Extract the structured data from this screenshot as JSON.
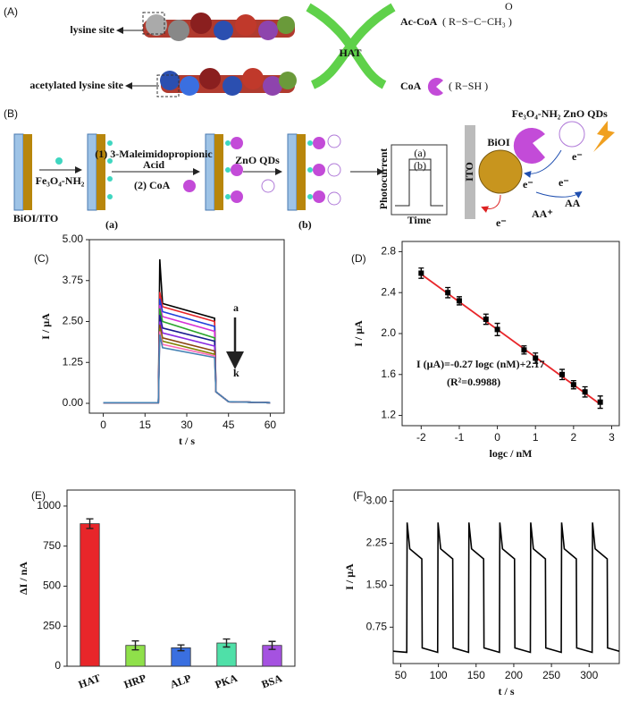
{
  "diagram": {
    "panel_a": {
      "label": "(A)",
      "lysine": "lysine site",
      "acetylated": "acetylated lysine site",
      "enzyme": "HAT",
      "accoa": "Ac-CoA",
      "accoa_formula": "( R−S−C−CH₃ )",
      "oxygen": "O",
      "coa": "CoA",
      "coa_formula": "( R−SH )"
    },
    "panel_b": {
      "label": "(B)",
      "electrode": "BiOI/ITO",
      "fe_step": "Fe₃O₄-NH₂",
      "step1": "(1) 3-Maleimidopropionic",
      "step1b": "Acid",
      "step2": "(2) CoA",
      "stage_a": "(a)",
      "zno_step": "ZnO QDs",
      "stage_b": "(b)",
      "pc_axis": "Photocurrent",
      "time_axis": "Time",
      "pc_a": "(a)",
      "pc_b": "(b)",
      "ito": "ITO",
      "bioi": "BiOI",
      "fe_label": "Fe₃O₄-NH₂",
      "zno_label": "ZnO QDs",
      "e1": "e⁻",
      "e2": "e⁻",
      "e3": "e⁻",
      "e4": "e⁻",
      "aa_plus": "AA⁺",
      "aa": "AA"
    }
  },
  "chart_data": [
    {
      "type": "line",
      "panel": "(C)",
      "x_label": "t / s",
      "y_label": "I / μA",
      "annotations": [
        "a",
        "k"
      ],
      "x": [
        0,
        19.8,
        20.3,
        21.3,
        40,
        40.5,
        45,
        60
      ],
      "series": [
        {
          "color": "#000000",
          "values": [
            0.02,
            0.02,
            4.4,
            3.05,
            2.6,
            0.35,
            0.05,
            0.02
          ]
        },
        {
          "color": "#e8262a",
          "values": [
            0.02,
            0.02,
            3.4,
            2.95,
            2.5,
            0.35,
            0.05,
            0.02
          ]
        },
        {
          "color": "#1f3fdc",
          "values": [
            0.02,
            0.02,
            3.2,
            2.8,
            2.35,
            0.35,
            0.05,
            0.02
          ]
        },
        {
          "color": "#d62fd6",
          "values": [
            0.02,
            0.02,
            3.0,
            2.65,
            2.2,
            0.35,
            0.05,
            0.02
          ]
        },
        {
          "color": "#2aa52a",
          "values": [
            0.02,
            0.02,
            2.9,
            2.5,
            2.0,
            0.35,
            0.05,
            0.02
          ]
        },
        {
          "color": "#1b1b8f",
          "values": [
            0.02,
            0.02,
            2.7,
            2.3,
            1.9,
            0.35,
            0.05,
            0.02
          ]
        },
        {
          "color": "#8a2be2",
          "values": [
            0.02,
            0.02,
            2.5,
            2.15,
            1.75,
            0.35,
            0.05,
            0.02
          ]
        },
        {
          "color": "#8b4513",
          "values": [
            0.02,
            0.02,
            2.4,
            2.0,
            1.6,
            0.35,
            0.05,
            0.02
          ]
        },
        {
          "color": "#808000",
          "values": [
            0.02,
            0.02,
            2.3,
            1.9,
            1.5,
            0.35,
            0.05,
            0.02
          ]
        },
        {
          "color": "#ff69b4",
          "values": [
            0.02,
            0.02,
            2.2,
            1.8,
            1.45,
            0.35,
            0.05,
            0.02
          ]
        },
        {
          "color": "#4682b4",
          "values": [
            0.02,
            0.02,
            2.1,
            1.7,
            1.4,
            0.35,
            0.05,
            0.02
          ]
        }
      ],
      "xlim": [
        -5,
        65
      ],
      "xticks": [
        0,
        15,
        30,
        45,
        60
      ],
      "ylim": [
        -0.3,
        5
      ],
      "yticks": [
        {
          "value": 0,
          "label": "0.00"
        },
        {
          "value": 1.25,
          "label": "1.25"
        },
        {
          "value": 2.5,
          "label": "2.50"
        },
        {
          "value": 3.75,
          "label": "3.75"
        },
        {
          "value": 5,
          "label": "5.00"
        }
      ]
    },
    {
      "type": "scatter",
      "panel": "(D)",
      "x_label": "logc / nM",
      "y_label": "I / μA",
      "annotations": [
        "I (μA)=-0.27 logc (nM)+2.17",
        "(R²=0.9988)"
      ],
      "x": [
        -2,
        -1.3,
        -1,
        -0.3,
        0,
        0.7,
        1,
        1.7,
        2,
        2.3,
        2.7
      ],
      "values": [
        2.59,
        2.4,
        2.32,
        2.14,
        2.04,
        1.84,
        1.76,
        1.6,
        1.5,
        1.43,
        1.33
      ],
      "errors": [
        0.05,
        0.05,
        0.04,
        0.05,
        0.06,
        0.04,
        0.05,
        0.05,
        0.04,
        0.05,
        0.06
      ],
      "color": "#000000",
      "fit": {
        "x": [
          -2,
          2.7
        ],
        "values": [
          2.58,
          1.31
        ],
        "color": "#e8262a"
      },
      "xlim": [
        -2.5,
        3.2
      ],
      "xticks": [
        -2,
        -1,
        0,
        1,
        2,
        3
      ],
      "ylim": [
        1.1,
        2.9
      ],
      "yticks": [
        1.2,
        1.6,
        {
          "value": 2,
          "label": "2.0"
        },
        2.4,
        2.8
      ]
    },
    {
      "type": "bar",
      "panel": "(E)",
      "y_label": "ΔI / nA",
      "categories": [
        "HAT",
        "HRP",
        "ALP",
        "PKA",
        "BSA"
      ],
      "values": [
        890,
        130,
        115,
        145,
        130
      ],
      "errors": [
        30,
        28,
        18,
        25,
        25
      ],
      "colors": [
        "#e8262a",
        "#8fe04a",
        "#3a6fe0",
        "#4fe0a8",
        "#a552e0"
      ],
      "ylim": [
        0,
        1100
      ],
      "yticks": [
        0,
        250,
        500,
        750,
        1000
      ]
    },
    {
      "type": "line",
      "panel": "(F)",
      "x_label": "t / s",
      "y_label": "I / μA",
      "x": [
        40,
        58,
        58.5,
        62,
        78,
        78.5,
        99,
        99.5,
        103,
        119,
        119.5,
        140,
        140.5,
        144,
        160,
        160.5,
        181,
        181.5,
        185,
        201,
        201.5,
        222,
        222.5,
        226,
        242,
        242.5,
        263,
        263.5,
        267,
        283,
        283.5,
        304,
        304.5,
        308,
        324,
        324.5,
        340
      ],
      "series": [
        {
          "color": "#000000",
          "values": [
            0.32,
            0.3,
            2.62,
            2.15,
            1.97,
            0.38,
            0.3,
            2.62,
            2.15,
            1.97,
            0.38,
            0.3,
            2.62,
            2.15,
            1.97,
            0.38,
            0.3,
            2.62,
            2.15,
            1.97,
            0.38,
            0.3,
            2.62,
            2.15,
            1.97,
            0.38,
            0.3,
            2.62,
            2.15,
            1.97,
            0.38,
            0.3,
            2.62,
            2.15,
            1.97,
            0.38,
            0.32
          ]
        }
      ],
      "xlim": [
        40,
        340
      ],
      "xticks": [
        50,
        100,
        150,
        200,
        250,
        300
      ],
      "ylim": [
        0.1,
        3.2
      ],
      "yticks": [
        {
          "value": 0.75,
          "label": "0.75"
        },
        {
          "value": 1.5,
          "label": "1.50"
        },
        {
          "value": 2.25,
          "label": "2.25"
        },
        {
          "value": 3,
          "label": "3.00"
        }
      ]
    }
  ]
}
